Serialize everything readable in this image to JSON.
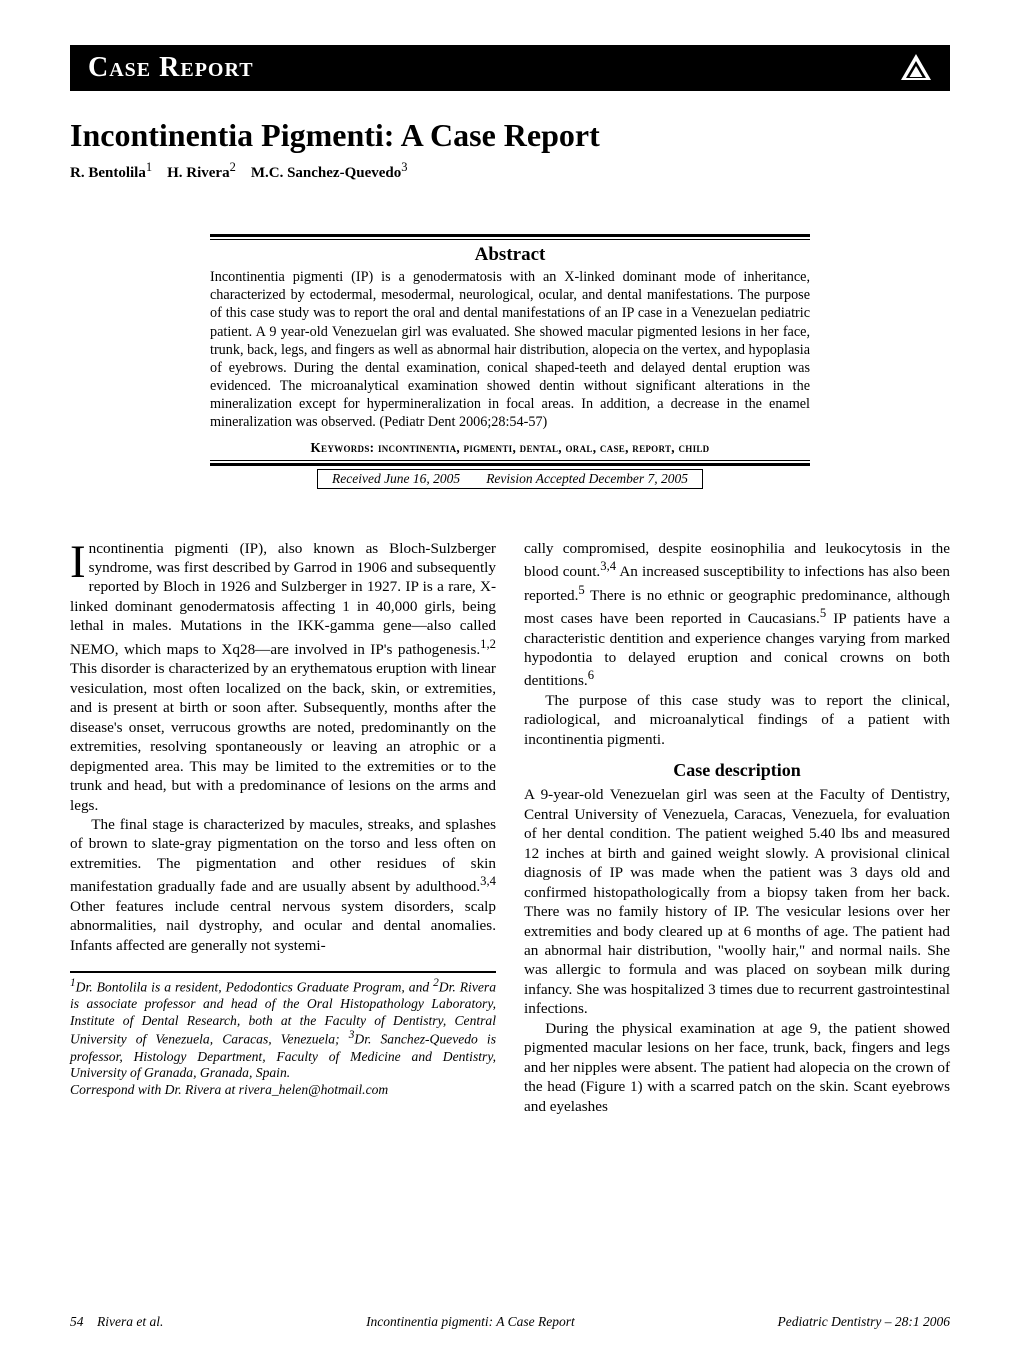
{
  "section_header": "Case Report",
  "title": "Incontinentia Pigmenti: A Case Report",
  "authors_html": "R. Bentolila<sup>1</sup> H. Rivera<sup>2</sup> M.C. Sanchez-Quevedo<sup>3</sup>",
  "abstract_heading": "Abstract",
  "abstract_text": "Incontinentia pigmenti (IP) is a genodermatosis with an X-linked dominant mode of inheritance, characterized by ectodermal, mesodermal, neurological, ocular, and dental manifestations. The purpose of this case study was to report the oral and dental manifestations of an IP case in a Venezuelan pediatric patient. A 9 year-old Venezuelan girl was evaluated. She showed macular pigmented lesions in her face, trunk, back, legs, and fingers as well as abnormal hair distribution, alopecia on the vertex, and hypoplasia of eyebrows. During the dental examination, conical shaped-teeth and delayed dental eruption was evidenced. The microanalytical examination showed dentin without significant alterations in the mineralization except for hypermineralization in focal areas. In addition, a decrease in the enamel mineralization was observed. (Pediatr Dent 2006;28:54-57)",
  "keywords": "Keywords: incontinentia, pigmenti, dental, oral, case, report, child",
  "date_received": "Received June 16, 2005",
  "date_accepted": "Revision Accepted December 7, 2005",
  "left_col": {
    "p1_first_letter": "I",
    "p1_rest": "ncontinentia pigmenti (IP), also known as Bloch-Sulzberger syndrome, was first described by Garrod in 1906 and subsequently reported by Bloch in 1926 and Sulzberger in 1927. IP is a rare, X-linked dominant genodermatosis affecting 1 in 40,000 girls, being lethal in males. Mutations in the IKK-gamma gene—also called NEMO, which maps to Xq28—are involved in IP's pathogenesis.<sup>1,2</sup> This disorder is characterized by an erythematous eruption with linear vesiculation, most often localized on the back, skin, or extremities, and is present at birth or soon after. Subsequently, months after the disease's onset, verrucous growths are noted, predominantly on the extremities, resolving spontaneously or leaving an atrophic or a depigmented area. This may be limited to the extremities or to the trunk and head, but with a predominance of lesions on the arms and legs.",
    "p2": "The final stage is characterized by macules, streaks, and splashes of brown to slate-gray pigmentation on the torso and less often on extremities. The pigmentation and other residues of skin manifestation gradually fade and are usually absent by adulthood.<sup>3,4</sup> Other features include central nervous system disorders, scalp abnormalities, nail dystrophy, and ocular and dental anomalies. Infants affected are generally not systemi-",
    "footnote": "<sup>1</sup>Dr. Bontolila is a resident, Pedodontics Graduate Program, and <sup>2</sup>Dr. Rivera is associate professor and head of the Oral Histopathology Laboratory, Institute of Dental Research, both at the Faculty of Dentistry, Central University of Venezuela, Caracas, Venezuela; <sup>3</sup>Dr. Sanchez-Quevedo is professor, Histology Department, Faculty of Medicine and Dentistry, University of Granada, Granada, Spain.<br>Correspond with Dr. Rivera at rivera_helen@hotmail.com"
  },
  "right_col": {
    "p1": "cally compromised, despite eosinophilia and leukocytosis in the blood count.<sup>3,4</sup> An increased susceptibility to infections has also been reported.<sup>5</sup> There is no ethnic or geographic predominance, although most cases have been reported in Caucasians.<sup>5</sup> IP patients have a characteristic dentition and experience changes varying from marked hypodontia to delayed eruption and conical crowns on both dentitions.<sup>6</sup>",
    "p2": "The purpose of this case study was to report the clinical, radiological, and microanalytical findings of a patient with incontinentia pigmenti.",
    "subheading": "Case description",
    "p3": "A 9-year-old Venezuelan girl was seen at the Faculty of Dentistry, Central University of Venezuela, Caracas, Venezuela, for evaluation of her dental condition. The patient weighed 5.40 lbs and measured 12 inches at birth and gained weight slowly. A provisional clinical diagnosis of IP was made when the patient was 3 days old and confirmed histopathologically from a biopsy taken from her back. There was no family history of IP. The vesicular lesions over her extremities and body cleared up at 6 months of age. The patient had an abnormal hair distribution, \"woolly hair,\" and normal nails. She was allergic to formula and was placed on soybean milk during infancy. She was hospitalized 3 times due to recurrent gastrointestinal infections.",
    "p4": "During the physical examination at age 9, the patient showed pigmented macular lesions on her face, trunk, back, fingers and legs and her nipples were absent. The patient had alopecia on the crown of the head (Figure 1) with a scarred patch on the skin. Scant eyebrows and eyelashes"
  },
  "footer": {
    "left": "54 Rivera et al.",
    "center": "Incontinentia pigmenti: A Case Report",
    "right": "Pediatric Dentistry – 28:1 2006"
  },
  "colors": {
    "text": "#000000",
    "bg": "#ffffff",
    "header_bg": "#000000",
    "header_text": "#ffffff"
  }
}
